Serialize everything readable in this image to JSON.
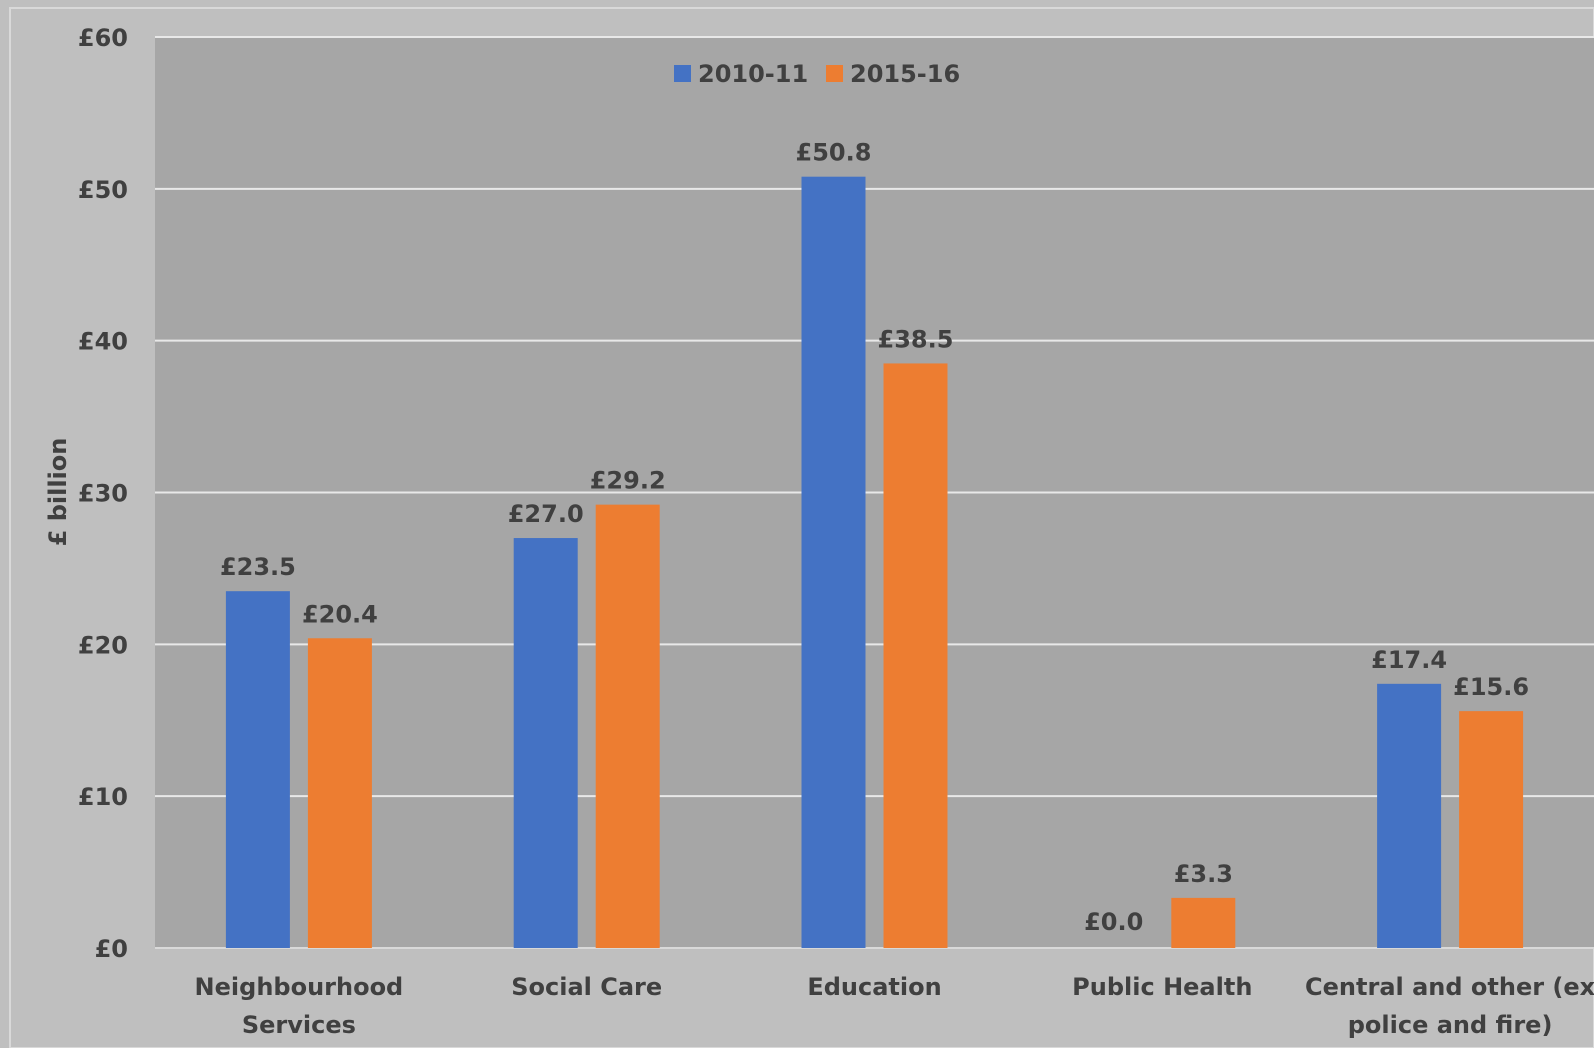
{
  "chart_data": {
    "type": "bar",
    "categories": [
      [
        "Neighbourhood",
        "Services"
      ],
      [
        "Social Care"
      ],
      [
        "Education"
      ],
      [
        "Public Health"
      ],
      [
        "Central and other (ex",
        "police and fire)"
      ]
    ],
    "series": [
      {
        "name": "2010-11",
        "color": "#4472c4",
        "values": [
          23.5,
          27.0,
          50.8,
          0.0,
          17.4
        ],
        "labels": [
          "£23.5",
          "£27.0",
          "£50.8",
          "£0.0",
          "£17.4"
        ]
      },
      {
        "name": "2015-16",
        "color": "#ed7d31",
        "values": [
          20.4,
          29.2,
          38.5,
          3.3,
          15.6
        ],
        "labels": [
          "£20.4",
          "£29.2",
          "£38.5",
          "£3.3",
          "£15.6"
        ]
      }
    ],
    "ylabel": "£ billion",
    "ylim": [
      0,
      60
    ],
    "yticks": [
      0,
      10,
      20,
      30,
      40,
      50,
      60
    ],
    "ytick_labels": [
      "£0",
      "£10",
      "£20",
      "£30",
      "£40",
      "£50",
      "£60"
    ],
    "grid": true,
    "legend_position": "top-center",
    "plot_background": "#a6a6a6",
    "gridline_color": "#e8e8e8"
  }
}
